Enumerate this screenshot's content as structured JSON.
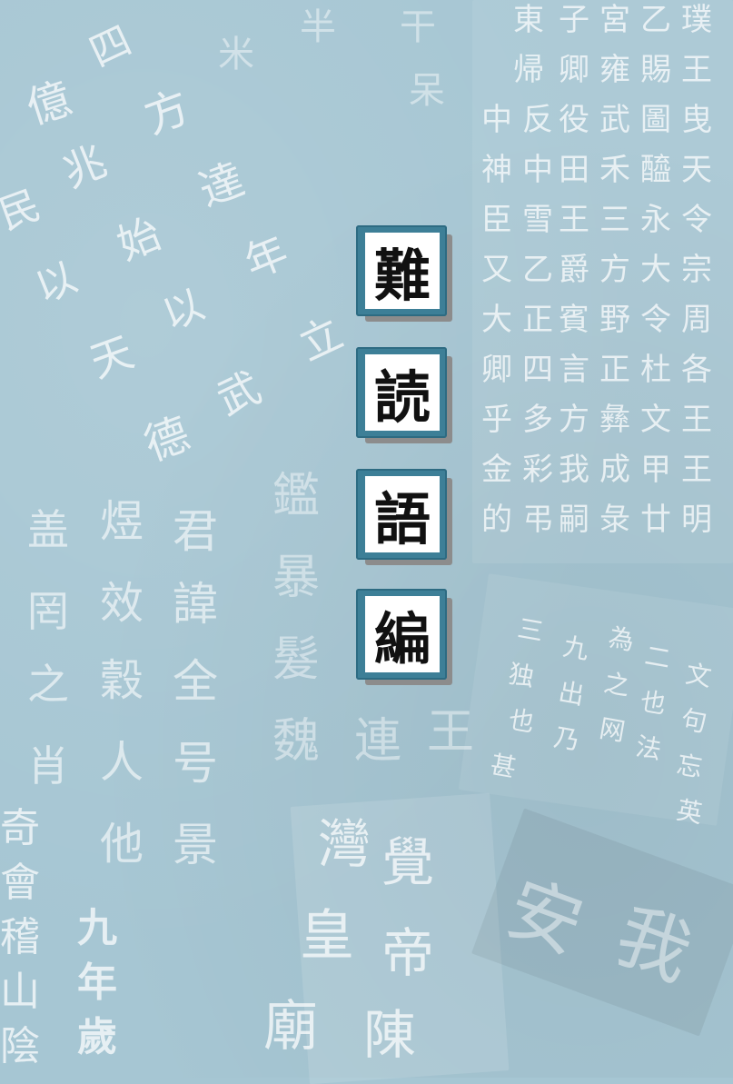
{
  "title": {
    "characters": [
      "難",
      "読",
      "語",
      "編"
    ]
  },
  "background": {
    "color": "#a6c6d3",
    "description_icon": "calligraphy-texture"
  },
  "colors": {
    "tile_frame": "#3d7f97",
    "tile_face": "#ffffff",
    "tile_shadow": "#8c8c8c",
    "text": "#111111"
  }
}
